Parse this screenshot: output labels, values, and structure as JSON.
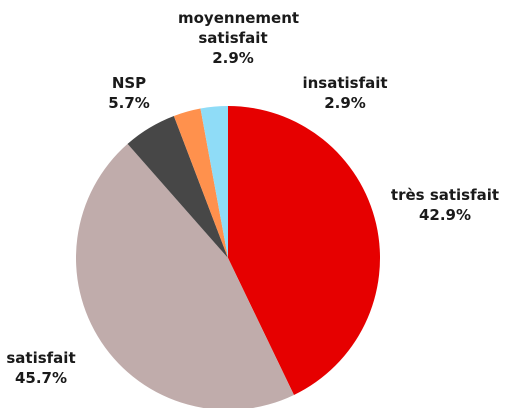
{
  "chart_data": {
    "type": "pie",
    "categories": [
      "très satisfait",
      "satisfait",
      "NSP",
      "moyennement satisfait",
      "insatisfait"
    ],
    "values": [
      42.9,
      45.7,
      5.7,
      2.9,
      2.9
    ],
    "value_labels": [
      "42.9%",
      "45.7%",
      "5.7%",
      "2.9%",
      "2.9%"
    ],
    "colors": [
      "#e60000",
      "#c0acab",
      "#474747",
      "#ff914d",
      "#8fdcf7"
    ]
  }
}
